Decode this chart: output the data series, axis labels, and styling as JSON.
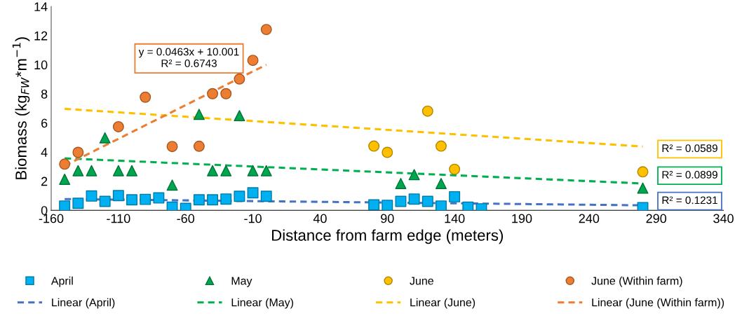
{
  "chart_data": {
    "type": "scatter",
    "xlabel": "Distance from farm edge (meters)",
    "ylabel": "Biomass (kg$_{FW}$*m$^{−1}$)",
    "xlim": [
      -160,
      340
    ],
    "xticks": [
      -160,
      -110,
      -60,
      -10,
      40,
      90,
      140,
      190,
      240,
      290,
      340
    ],
    "ylim": [
      0,
      14
    ],
    "yticks": [
      0,
      2,
      4,
      6,
      8,
      10,
      12,
      14
    ],
    "grid": false,
    "legend": "bottom",
    "series": [
      {
        "name": "April",
        "marker": "square",
        "color": "#00b0f0",
        "x": [
          -150,
          -140,
          -130,
          -120,
          -110,
          -100,
          -90,
          -80,
          -70,
          -60,
          -50,
          -40,
          -30,
          -20,
          -10,
          0,
          80,
          90,
          100,
          110,
          120,
          130,
          140,
          150,
          160,
          280
        ],
        "values": [
          0.29,
          0.48,
          0.98,
          0.61,
          1.01,
          0.72,
          0.75,
          0.85,
          0.21,
          0.13,
          0.72,
          0.72,
          0.77,
          0.96,
          1.2,
          0.96,
          0.37,
          0.34,
          0.61,
          0.77,
          0.61,
          0.29,
          0.93,
          0.21,
          0.1,
          0.18
        ]
      },
      {
        "name": "Linear (April)",
        "type": "line",
        "line_style": "dashed",
        "color": "#4472c4",
        "x": [
          -150,
          280
        ],
        "values": [
          0.77,
          0.34
        ]
      },
      {
        "name": "May",
        "marker": "triangle",
        "color": "#00a64f",
        "x": [
          -150,
          -140,
          -130,
          -120,
          -110,
          -100,
          -70,
          -50,
          -40,
          -30,
          -20,
          -10,
          0,
          100,
          110,
          130,
          280
        ],
        "values": [
          2.13,
          2.72,
          2.72,
          4.98,
          2.72,
          2.72,
          1.73,
          6.59,
          2.72,
          2.72,
          6.5,
          2.72,
          2.72,
          1.84,
          2.45,
          1.84,
          1.52
        ]
      },
      {
        "name": "Linear (May)",
        "type": "line",
        "line_style": "dashed",
        "color": "#00b050",
        "x": [
          -150,
          280
        ],
        "values": [
          3.57,
          1.84
        ]
      },
      {
        "name": "June",
        "marker": "circle",
        "color": "#ffc000",
        "x": [
          80,
          90,
          120,
          130,
          140,
          280
        ],
        "values": [
          4.41,
          3.98,
          6.81,
          4.41,
          2.82,
          2.64
        ]
      },
      {
        "name": "Linear (June)",
        "type": "line",
        "line_style": "dashed",
        "color": "#ffc000",
        "x": [
          -150,
          280
        ],
        "values": [
          6.97,
          4.38
        ]
      },
      {
        "name": "June (Within farm)",
        "marker": "circle",
        "color": "#ed7d31",
        "x": [
          -150,
          -140,
          -110,
          -90,
          -70,
          -50,
          -40,
          -30,
          -20,
          -10,
          0
        ],
        "values": [
          3.17,
          3.98,
          5.74,
          7.77,
          4.38,
          4.4,
          8.01,
          8.01,
          9.02,
          10.3,
          12.42
        ]
      },
      {
        "name": "Linear (June (Within farm))",
        "type": "line",
        "line_style": "dashed",
        "color": "#ed7d31",
        "x": [
          -150,
          0
        ],
        "values": [
          3.06,
          10.0
        ]
      }
    ],
    "annotations": [
      "R² = 0.1231",
      "R² = 0.0899",
      "R² = 0.0589",
      "y = 0.0463x + 10.001\nR² = 0.6743"
    ]
  }
}
